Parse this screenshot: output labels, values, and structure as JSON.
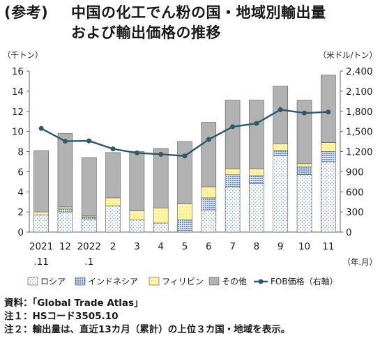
{
  "title": {
    "prefix": "(参考)",
    "line1": "中国の化工でん粉の国・地域別輸出量",
    "line2": "および輸出価格の推移"
  },
  "notes": [
    "資料：「Global Trade Atlas」",
    "注１：HSコード3505.10",
    "注２：輸出量は、直近13カ月（累計）の上位３カ国・地域を表示。"
  ],
  "colors": {
    "russia": "#4a78b8",
    "indonesia": "#4a78b8",
    "philippines": "#fff19a",
    "other": "#b2b2b2",
    "fob_line": "#2f5868",
    "axis": "#666666"
  },
  "chart_data": {
    "type": "bar",
    "stacked": true,
    "categories": [
      [
        "2021",
        ".11"
      ],
      [
        "12",
        ""
      ],
      [
        "2022",
        ".1"
      ],
      [
        "2",
        ""
      ],
      [
        "3",
        ""
      ],
      [
        "4",
        ""
      ],
      [
        "5",
        ""
      ],
      [
        "6",
        ""
      ],
      [
        "7",
        ""
      ],
      [
        "8",
        ""
      ],
      [
        "9",
        ""
      ],
      [
        "10",
        ""
      ],
      [
        "11",
        ""
      ]
    ],
    "series": [
      {
        "name": "ロシア",
        "key": "russia",
        "values": [
          1.7,
          2.0,
          1.3,
          2.6,
          1.2,
          0.9,
          0.15,
          2.2,
          4.5,
          4.8,
          7.6,
          5.7,
          7.0
        ]
      },
      {
        "name": "インドネシア",
        "key": "indonesia",
        "values": [
          0.0,
          0.3,
          0.2,
          0.0,
          0.0,
          0.0,
          1.05,
          1.2,
          1.2,
          0.8,
          0.5,
          0.8,
          1.0
        ]
      },
      {
        "name": "フィリピン",
        "key": "philippines",
        "values": [
          0.3,
          0.2,
          0.1,
          0.8,
          0.9,
          1.5,
          1.6,
          1.1,
          0.6,
          0.7,
          0.7,
          0.3,
          0.9
        ]
      },
      {
        "name": "その他",
        "key": "other",
        "values": [
          6.1,
          7.3,
          5.8,
          4.5,
          5.9,
          5.9,
          6.2,
          6.4,
          6.8,
          6.8,
          5.7,
          6.3,
          6.7
        ]
      }
    ],
    "line": {
      "name": "FOB価格（右軸）",
      "values": [
        1545,
        1355,
        1360,
        1240,
        1180,
        1160,
        1135,
        1380,
        1570,
        1620,
        1825,
        1775,
        1790
      ]
    },
    "ylabel_left": "（千トン）",
    "ylabel_right": "（米ドル/トン）",
    "xlabel": "（年.月）",
    "ylim_left": [
      0,
      16
    ],
    "yticks_left": [
      "0",
      "2",
      "4",
      "6",
      "8",
      "10",
      "12",
      "14",
      "16"
    ],
    "ylim_right": [
      0,
      2400
    ],
    "yticks_right": [
      "0",
      "300",
      "600",
      "900",
      "1,200",
      "1,500",
      "1,800",
      "2,100",
      "2,400"
    ],
    "grid": false,
    "legend_position": "bottom"
  }
}
